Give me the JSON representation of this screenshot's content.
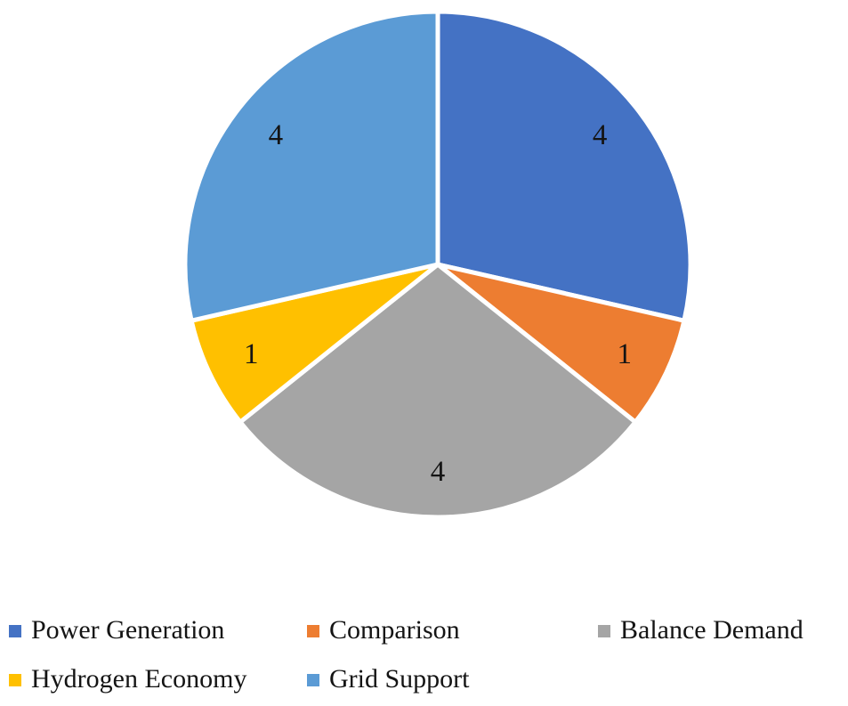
{
  "chart_data": {
    "type": "pie",
    "categories": [
      "Power Generation",
      "Comparison",
      "Balance Demand",
      "Hydrogen Economy",
      "Grid Support"
    ],
    "values": [
      4,
      1,
      4,
      1,
      4
    ],
    "data_labels": [
      "4",
      "1",
      "4",
      "1",
      "4"
    ],
    "colors": [
      "#4472C4",
      "#ED7D31",
      "#A5A5A5",
      "#FFC000",
      "#5B9BD5"
    ],
    "start_angle": 0,
    "direction": "clockwise",
    "legend_position": "bottom",
    "title": "",
    "background": "#ffffff",
    "label_color": "#141414"
  }
}
